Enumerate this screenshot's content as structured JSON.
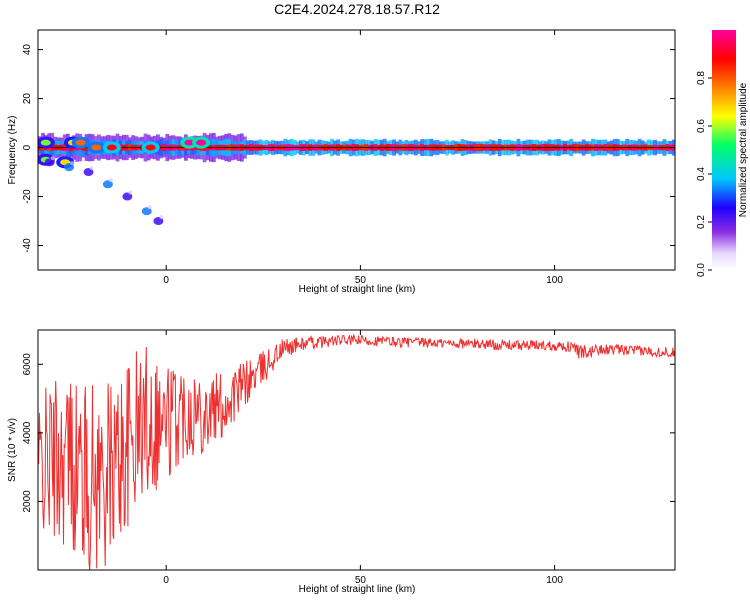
{
  "figure": {
    "title": "C2E4.2024.278.18.57.R12"
  },
  "chart_data": [
    {
      "type": "heatmap",
      "id": "spectrogram",
      "title": "C2E4.2024.278.18.57.R12",
      "xlabel": "Height of straight line (km)",
      "ylabel": "Frequency (Hz)",
      "xlim": [
        -33,
        131
      ],
      "ylim": [
        -50,
        48
      ],
      "xticks": [
        0,
        50,
        100
      ],
      "yticks": [
        -40,
        -20,
        0,
        20,
        40
      ],
      "colorbar": {
        "label": "Normalized spectral amplitude",
        "range": [
          0,
          1
        ],
        "ticks": [
          "0.0",
          "0.2",
          "0.4",
          "0.6",
          "0.8"
        ],
        "tick_values": [
          0,
          0.2,
          0.4,
          0.6,
          0.8
        ],
        "colormap": [
          "#ffffff",
          "#e8d8ff",
          "#8a2be2",
          "#1e00ff",
          "#00c8ff",
          "#00ff66",
          "#ffff00",
          "#ff8000",
          "#ff0000",
          "#ff00a0"
        ]
      },
      "bands": [
        {
          "x_start": -33,
          "x_end": 131,
          "freq": 0,
          "half_width_hz": 1.2,
          "amplitude": 1.0
        },
        {
          "x_start": -33,
          "x_end": 131,
          "freq": 0,
          "half_width_hz": 3.0,
          "amplitude": 0.45
        },
        {
          "x_start": -33,
          "x_end": 20,
          "freq": 0,
          "half_width_hz": 5.0,
          "amplitude": 0.25
        }
      ],
      "blobs": [
        {
          "x": -31,
          "freq": 2,
          "amplitude": 0.6
        },
        {
          "x": -31,
          "freq": -5,
          "amplitude": 0.6
        },
        {
          "x": -26,
          "freq": -6,
          "amplitude": 0.7
        },
        {
          "x": -24,
          "freq": 2,
          "amplitude": 0.7
        },
        {
          "x": -22,
          "freq": 2,
          "amplitude": 0.8
        },
        {
          "x": -18,
          "freq": 0,
          "amplitude": 0.8
        },
        {
          "x": -14,
          "freq": 0,
          "amplitude": 0.9
        },
        {
          "x": -4,
          "freq": 0,
          "amplitude": 0.9
        },
        {
          "x": 6,
          "freq": 2,
          "amplitude": 1.0
        },
        {
          "x": 9,
          "freq": 2,
          "amplitude": 1.0
        }
      ],
      "branch": {
        "points": [
          [
            -30,
            -6
          ],
          [
            -25,
            -8
          ],
          [
            -20,
            -10
          ],
          [
            -15,
            -15
          ],
          [
            -10,
            -20
          ],
          [
            -5,
            -26
          ],
          [
            -2,
            -30
          ]
        ],
        "amplitude": 0.35
      }
    },
    {
      "type": "line",
      "id": "snr",
      "xlabel": "Height of straight line (km)",
      "ylabel": "SNR (10 * v/v)",
      "xlim": [
        -33,
        131
      ],
      "ylim": [
        0,
        7000
      ],
      "xticks": [
        0,
        50,
        100
      ],
      "yticks": [
        2000,
        4000,
        6000
      ],
      "series": [
        {
          "color": "#ef3030",
          "envelope": {
            "x": [
              -33,
              -30,
              -25,
              -20,
              -15,
              -10,
              -5,
              0,
              5,
              10,
              15,
              20,
              25,
              30,
              35,
              40,
              45,
              50,
              60,
              70,
              80,
              90,
              100,
              105,
              108,
              110,
              120,
              131
            ],
            "mean": [
              3000,
              3200,
              3300,
              2600,
              2800,
              3600,
              4500,
              4300,
              4700,
              4600,
              4800,
              5400,
              5900,
              6450,
              6600,
              6650,
              6700,
              6700,
              6650,
              6620,
              6600,
              6550,
              6550,
              6500,
              6200,
              6450,
              6400,
              6350
            ],
            "spread": [
              1800,
              2400,
              2600,
              2800,
              2700,
              2500,
              2300,
              1900,
              1400,
              1200,
              1000,
              700,
              500,
              300,
              200,
              180,
              150,
              150,
              150,
              140,
              150,
              150,
              150,
              150,
              350,
              150,
              150,
              150
            ]
          }
        }
      ]
    }
  ]
}
